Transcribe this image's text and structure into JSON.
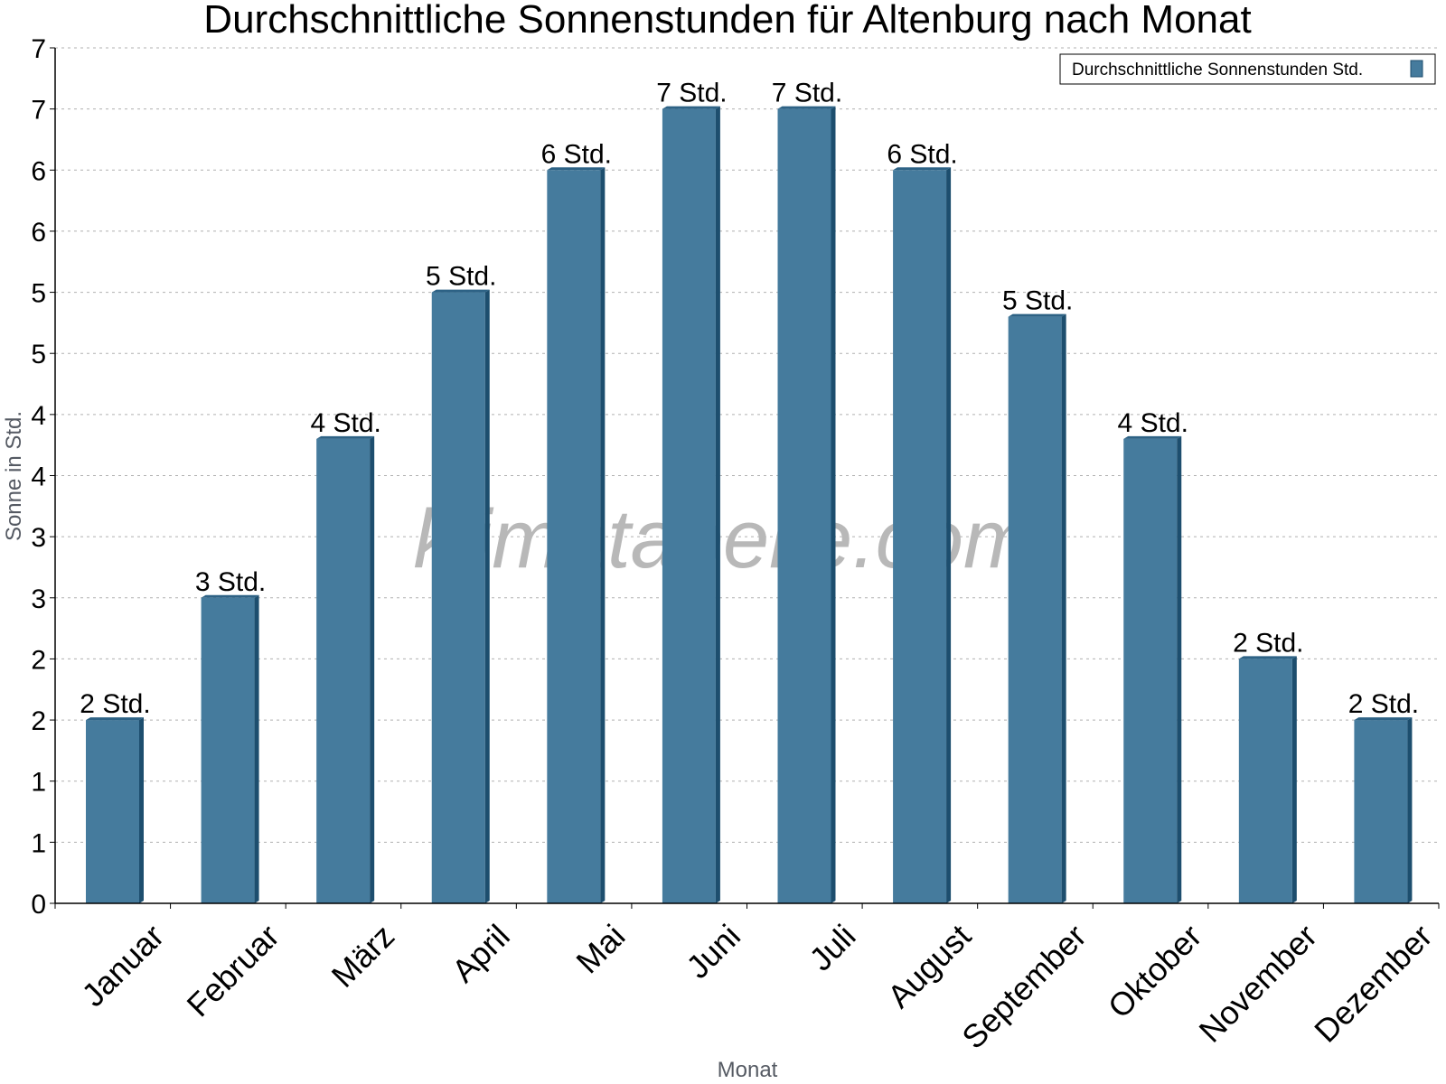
{
  "colors": {
    "bar_face": "#457b9d",
    "bar_side": "#1d4e6e",
    "bar_top": "#2d6285",
    "grid": "#b0b0b0",
    "axis": "#000000",
    "axis_title": "#555a63"
  },
  "watermark": "klimatabelle.com",
  "chart_data": {
    "type": "bar",
    "title": "Durchschnittliche Sonnenstunden für Altenburg nach Monat",
    "xlabel": "Monat",
    "ylabel": "Sonne in Std.",
    "ylim": [
      0,
      7
    ],
    "y_ticks": [
      {
        "value": 0,
        "label": "0"
      },
      {
        "value": 0.5,
        "label": "1"
      },
      {
        "value": 1,
        "label": "1"
      },
      {
        "value": 1.5,
        "label": "2"
      },
      {
        "value": 2,
        "label": "2"
      },
      {
        "value": 2.5,
        "label": "3"
      },
      {
        "value": 3,
        "label": "3"
      },
      {
        "value": 3.5,
        "label": "4"
      },
      {
        "value": 4,
        "label": "4"
      },
      {
        "value": 4.5,
        "label": "5"
      },
      {
        "value": 5,
        "label": "5"
      },
      {
        "value": 5.5,
        "label": "6"
      },
      {
        "value": 6,
        "label": "6"
      },
      {
        "value": 6.5,
        "label": "7"
      },
      {
        "value": 7,
        "label": "7"
      }
    ],
    "grid": true,
    "legend_position": "top-right",
    "categories": [
      "Januar",
      "Februar",
      "März",
      "April",
      "Mai",
      "Juni",
      "Juli",
      "August",
      "September",
      "Oktober",
      "November",
      "Dezember"
    ],
    "series": [
      {
        "name": "Durchschnittliche Sonnenstunden Std.",
        "values": [
          1.5,
          2.5,
          3.8,
          5.0,
          6.0,
          6.5,
          6.5,
          6.0,
          4.8,
          3.8,
          2.0,
          1.5
        ],
        "labels": [
          "2 Std.",
          "3 Std.",
          "4 Std.",
          "5 Std.",
          "6 Std.",
          "7 Std.",
          "7 Std.",
          "6 Std.",
          "5 Std.",
          "4 Std.",
          "2 Std.",
          "2 Std."
        ]
      }
    ]
  }
}
